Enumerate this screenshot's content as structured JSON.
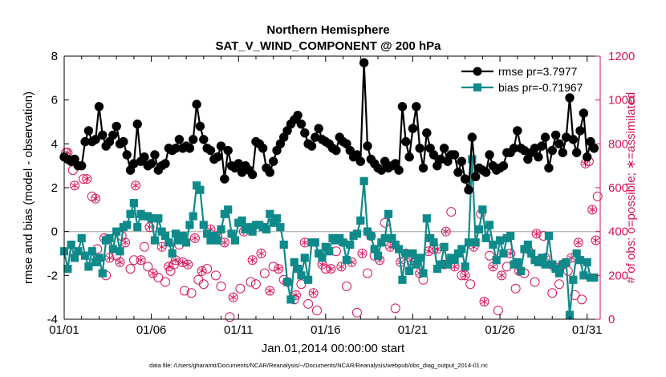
{
  "chart_data": {
    "type": "line",
    "title": "Northern Hemisphere",
    "subtitle": "SAT_V_WIND_COMPONENT @ 200 hPa",
    "xlabel": "Jan.01,2014 00:00:00 start",
    "ylabel": "rmse and bias (model - observation)",
    "y2label": "# of obs: o=possible; ∗=assimilated",
    "footnote": "data file: /Users/gharamti/Documents/NCAR/Reanalysis/~/Documents/NCAR/Reanalysis/webpub/obs_diag_output_2014-01.nc",
    "xlim": [
      0,
      30.75
    ],
    "ylim": [
      -4,
      8
    ],
    "y2lim": [
      0,
      1200
    ],
    "x_tick_labels": [
      "01/01",
      "01/06",
      "01/11",
      "01/16",
      "01/21",
      "01/26",
      "01/31"
    ],
    "x_tick_values": [
      0,
      5,
      10,
      15,
      20,
      25,
      30
    ],
    "y_ticks": [
      -4,
      -2,
      0,
      2,
      4,
      6,
      8
    ],
    "y2_ticks": [
      0,
      200,
      400,
      600,
      800,
      1000,
      1200
    ],
    "zero_line": 0,
    "legend_position": "top-right",
    "colors": {
      "rmse": "#000000",
      "bias": "#0f8a8a",
      "obs": "#d6135a",
      "zero": "#bbbbbb"
    },
    "series": [
      {
        "name": "rmse pr=3.7977",
        "marker": "circle",
        "values": [
          3.4,
          3.3,
          3.2,
          3.3,
          3.0,
          3.0,
          4.1,
          4.6,
          4.1,
          4.2,
          5.7,
          4.4,
          3.9,
          4.1,
          4.4,
          4.8,
          4.0,
          4.1,
          3.5,
          2.8,
          3.1,
          4.9,
          3.2,
          3.4,
          3.0,
          3.1,
          3.5,
          2.8,
          3.0,
          3.1,
          3.8,
          3.7,
          3.8,
          4.2,
          3.8,
          3.9,
          3.8,
          4.2,
          5.8,
          4.8,
          4.2,
          3.8,
          3.7,
          3.3,
          3.4,
          3.9,
          2.4,
          3.7,
          3.0,
          2.9,
          3.1,
          2.7,
          3.0,
          2.8,
          2.6,
          4.1,
          4.0,
          3.8,
          2.9,
          2.7,
          3.2,
          3.7,
          4.0,
          4.3,
          4.6,
          4.9,
          5.1,
          5.3,
          4.9,
          4.5,
          4.0,
          3.9,
          4.3,
          4.7,
          4.2,
          4.1,
          4.0,
          3.8,
          3.7,
          4.3,
          4.1,
          4.0,
          3.7,
          3.4,
          3.5,
          3.2,
          7.7,
          3.9,
          3.3,
          3.1,
          2.9,
          2.8,
          3.2,
          2.9,
          3.0,
          3.1,
          2.8,
          5.7,
          4.1,
          3.4,
          4.7,
          5.7,
          3.8,
          2.9,
          4.5,
          3.8,
          3.5,
          3.0,
          3.3,
          3.8,
          3.2,
          3.5,
          3.5,
          2.7,
          3.2,
          2.4,
          1.9,
          4.3,
          2.5,
          2.9,
          2.8,
          2.7,
          3.5,
          3.0,
          2.8,
          2.9,
          3.0,
          3.6,
          3.6,
          3.8,
          4.6,
          3.8,
          3.7,
          3.3,
          3.6,
          3.8,
          3.4,
          3.9,
          4.3,
          2.9,
          3.7,
          4.4,
          4.0,
          3.6,
          4.3,
          6.1,
          4.2,
          3.6,
          4.6,
          5.4,
          3.4,
          4.1,
          3.8
        ],
        "values_x_step": 0.2
      },
      {
        "name": "bias pr=-0.71967",
        "marker": "square",
        "values": [
          -0.9,
          -1.7,
          -0.6,
          -1.2,
          -0.9,
          -0.3,
          -1.1,
          -1.6,
          -0.9,
          -1.4,
          -1.2,
          -1.9,
          -0.4,
          -0.3,
          -0.8,
          0.0,
          -0.9,
          0.2,
          0.3,
          0.8,
          1.3,
          0.2,
          0.8,
          0.7,
          0.7,
          0.6,
          -0.4,
          0.6,
          0.0,
          -0.2,
          -0.5,
          -1.0,
          -0.1,
          -0.4,
          -0.2,
          -0.5,
          0.3,
          0.7,
          2.1,
          1.9,
          0.3,
          -0.1,
          -0.4,
          -0.2,
          -0.4,
          0.1,
          0.8,
          1.0,
          -0.1,
          -0.4,
          0.4,
          0.5,
          0.1,
          0.2,
          0.0,
          0.3,
          0.3,
          0.2,
          0.1,
          0.8,
          0.4,
          0.6,
          0.2,
          -0.6,
          -2.3,
          -3.1,
          -1.4,
          -1.7,
          -2.0,
          -1.2,
          -2.2,
          -0.5,
          -0.5,
          -1.0,
          -1.2,
          -0.7,
          -0.9,
          -0.3,
          -0.4,
          -0.3,
          -0.5,
          -1.3,
          -0.6,
          -0.2,
          -0.1,
          0.5,
          2.3,
          0.0,
          -0.2,
          -0.8,
          -1.1,
          -0.5,
          -0.3,
          0.8,
          -0.3,
          -0.6,
          -0.8,
          -2.2,
          -1.0,
          -1.8,
          -1.0,
          -1.5,
          -1.2,
          -1.9,
          0.6,
          -0.3,
          -0.5,
          -1.7,
          -1.5,
          -0.7,
          -1.5,
          -1.2,
          -1.3,
          -1.0,
          -0.8,
          -1.6,
          -0.5,
          3.3,
          -0.5,
          0.1,
          1.0,
          -0.3,
          0.3,
          -0.6,
          -1.3,
          -0.4,
          -1.0,
          -0.3,
          -0.2,
          -1.5,
          -1.4,
          -1.8,
          -0.8,
          -0.6,
          -1.0,
          -1.3,
          -1.4,
          -1.2,
          -1.5,
          -0.2,
          -1.5,
          -1.7,
          -1.9,
          -1.5,
          -1.4,
          -3.8,
          -2.2,
          -1.0,
          -1.3,
          -2.0,
          -1.4,
          -2.1,
          -2.1
        ],
        "values_x_step": 0.2
      },
      {
        "name": "obs possible",
        "marker": "circle-open",
        "axis": "right",
        "x": [
          0.1,
          0.5,
          1.1,
          1.6,
          1.9,
          2.4,
          3.0,
          3.3,
          3.8,
          4.0,
          4.6,
          4.8,
          5.4,
          5.8,
          6.1,
          6.3,
          6.6,
          6.9,
          7.3,
          7.7,
          8.0,
          8.2,
          8.7,
          9.0,
          9.5,
          10.1,
          10.7,
          11.0,
          11.5,
          12.0,
          12.6,
          13.2,
          13.6,
          14.0,
          14.5,
          15.0,
          15.6,
          16.2,
          16.8,
          17.4,
          17.8,
          18.4,
          19.0,
          19.6,
          20.1,
          20.6,
          21.2,
          21.8,
          22.2,
          22.8,
          23.3,
          23.9,
          24.4,
          24.9,
          25.4,
          25.9,
          26.4,
          27.0,
          27.5,
          28.0,
          28.4,
          28.9,
          29.3,
          29.7,
          30.1,
          30.6
        ],
        "values": [
          760,
          680,
          640,
          560,
          320,
          200,
          290,
          380,
          230,
          270,
          330,
          240,
          190,
          170,
          220,
          250,
          340,
          130,
          120,
          180,
          160,
          230,
          200,
          150,
          10,
          140,
          170,
          160,
          210,
          240,
          180,
          90,
          160,
          70,
          40,
          230,
          310,
          150,
          30,
          210,
          290,
          440,
          50,
          300,
          260,
          180,
          320,
          250,
          490,
          200,
          160,
          480,
          290,
          40,
          240,
          140,
          210,
          170,
          380,
          120,
          160,
          220,
          110,
          90,
          720,
          560
        ]
      },
      {
        "name": "obs assimilated",
        "marker": "asterisk",
        "axis": "right",
        "x": [
          0.2,
          0.6,
          1.3,
          1.8,
          2.3,
          2.6,
          3.2,
          3.5,
          4.1,
          4.4,
          4.9,
          5.1,
          5.6,
          6.0,
          6.4,
          6.8,
          7.1,
          7.5,
          7.9,
          8.4,
          8.8,
          9.2,
          9.7,
          10.3,
          10.8,
          11.3,
          11.8,
          12.3,
          12.8,
          13.3,
          13.8,
          14.3,
          14.8,
          15.3,
          15.9,
          16.5,
          17.1,
          17.6,
          18.1,
          18.7,
          19.3,
          19.9,
          20.4,
          20.9,
          21.4,
          21.9,
          22.4,
          23.0,
          23.5,
          24.1,
          24.6,
          25.1,
          25.6,
          26.1,
          26.6,
          27.1,
          27.6,
          28.1,
          28.6,
          29.1,
          29.5,
          29.9,
          30.3,
          30.5
        ],
        "values": [
          760,
          610,
          640,
          550,
          370,
          280,
          260,
          350,
          610,
          270,
          420,
          210,
          330,
          240,
          270,
          260,
          250,
          370,
          220,
          410,
          380,
          350,
          100,
          400,
          270,
          300,
          130,
          230,
          170,
          110,
          350,
          120,
          250,
          230,
          240,
          260,
          300,
          380,
          270,
          330,
          260,
          270,
          210,
          310,
          320,
          400,
          240,
          200,
          330,
          80,
          240,
          200,
          300,
          220,
          320,
          390,
          280,
          240,
          250,
          280,
          350,
          710,
          500,
          360
        ]
      }
    ]
  }
}
